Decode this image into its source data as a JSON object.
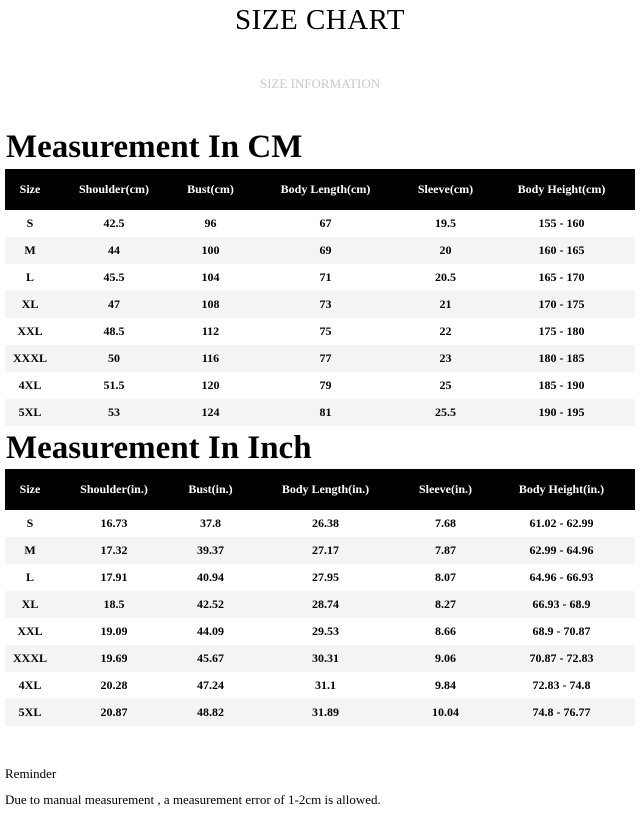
{
  "header": {
    "title": "SIZE CHART",
    "subtitle": "SIZE INFORMATION"
  },
  "cm": {
    "heading": "Measurement In CM",
    "columns": [
      "Size",
      "Shoulder(cm)",
      "Bust(cm)",
      "Body Length(cm)",
      "Sleeve(cm)",
      "Body Height(cm)"
    ],
    "rows": [
      [
        "S",
        "42.5",
        "96",
        "67",
        "19.5",
        "155 - 160"
      ],
      [
        "M",
        "44",
        "100",
        "69",
        "20",
        "160 - 165"
      ],
      [
        "L",
        "45.5",
        "104",
        "71",
        "20.5",
        "165 - 170"
      ],
      [
        "XL",
        "47",
        "108",
        "73",
        "21",
        "170 - 175"
      ],
      [
        "XXL",
        "48.5",
        "112",
        "75",
        "22",
        "175 - 180"
      ],
      [
        "XXXL",
        "50",
        "116",
        "77",
        "23",
        "180 - 185"
      ],
      [
        "4XL",
        "51.5",
        "120",
        "79",
        "25",
        "185 - 190"
      ],
      [
        "5XL",
        "53",
        "124",
        "81",
        "25.5",
        "190 - 195"
      ]
    ]
  },
  "inch": {
    "heading": "Measurement In Inch",
    "columns": [
      "Size",
      "Shoulder(in.)",
      "Bust(in.)",
      "Body Length(in.)",
      "Sleeve(in.)",
      "Body Height(in.)"
    ],
    "rows": [
      [
        "S",
        "16.73",
        "37.8",
        "26.38",
        "7.68",
        "61.02 - 62.99"
      ],
      [
        "M",
        "17.32",
        "39.37",
        "27.17",
        "7.87",
        "62.99 - 64.96"
      ],
      [
        "L",
        "17.91",
        "40.94",
        "27.95",
        "8.07",
        "64.96 - 66.93"
      ],
      [
        "XL",
        "18.5",
        "42.52",
        "28.74",
        "8.27",
        "66.93 - 68.9"
      ],
      [
        "XXL",
        "19.09",
        "44.09",
        "29.53",
        "8.66",
        "68.9 - 70.87"
      ],
      [
        "XXXL",
        "19.69",
        "45.67",
        "30.31",
        "9.06",
        "70.87 - 72.83"
      ],
      [
        "4XL",
        "20.28",
        "47.24",
        "31.1",
        "9.84",
        "72.83 - 74.8"
      ],
      [
        "5XL",
        "20.87",
        "48.82",
        "31.89",
        "10.04",
        "74.8 - 76.77"
      ]
    ]
  },
  "reminder": {
    "title": "Reminder",
    "text": "Due to manual measurement , a measurement error of 1-2cm is allowed."
  },
  "colors": {
    "header_bg": "#000000",
    "header_text": "#ffffff",
    "stripe": "#f4f4f4",
    "subtitle": "#c9c9c9"
  }
}
